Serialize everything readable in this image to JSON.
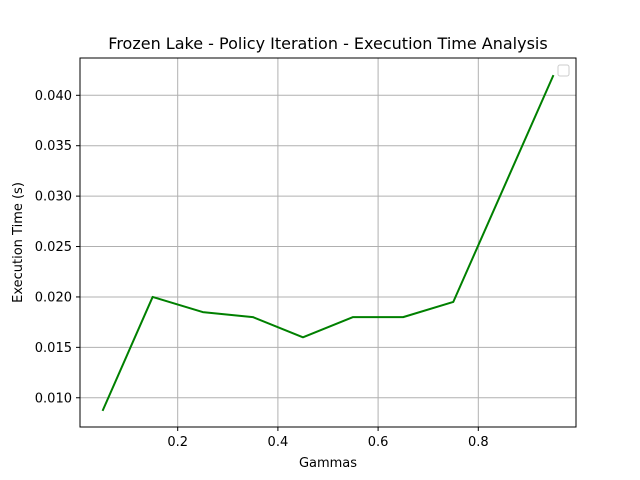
{
  "chart_data": {
    "type": "line",
    "title": "Frozen Lake - Policy Iteration - Execution Time Analysis",
    "xlabel": "Gammas",
    "ylabel": "Execution Time (s)",
    "x": [
      0.05,
      0.15,
      0.25,
      0.35,
      0.45,
      0.55,
      0.65,
      0.75,
      0.95
    ],
    "series": [
      {
        "values": [
          0.0087,
          0.02,
          0.0185,
          0.018,
          0.016,
          0.018,
          0.018,
          0.0195,
          0.042
        ],
        "color": "#008000"
      }
    ],
    "xlim": [
      0.005,
      0.995
    ],
    "ylim": [
      0.0071,
      0.0437
    ],
    "xticks": [
      0.2,
      0.4,
      0.6,
      0.8
    ],
    "xtick_labels": [
      "0.2",
      "0.4",
      "0.6",
      "0.8"
    ],
    "yticks": [
      0.01,
      0.015,
      0.02,
      0.025,
      0.03,
      0.035,
      0.04
    ],
    "ytick_labels": [
      "0.010",
      "0.015",
      "0.020",
      "0.025",
      "0.030",
      "0.035",
      "0.040"
    ],
    "grid": true,
    "legend": "upper right (empty)"
  }
}
